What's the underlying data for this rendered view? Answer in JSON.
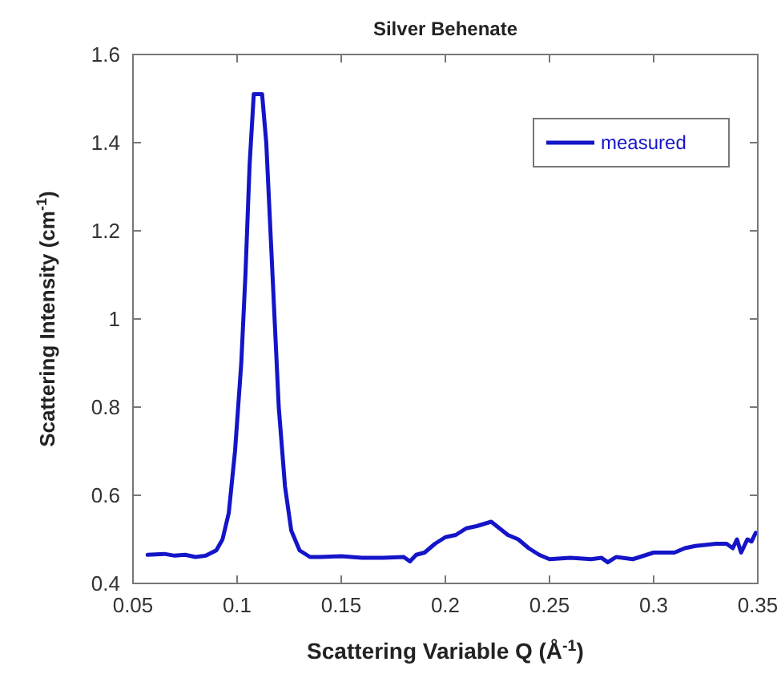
{
  "chart_data": {
    "type": "line",
    "title": "Silver Behenate",
    "xlabel": "Scattering Variable Q (Å$^{-1}$)",
    "ylabel": "Scattering Intensity (cm$^{-1}$)",
    "xlim": [
      0.05,
      0.35
    ],
    "xticks": [
      0.05,
      0.1,
      0.15,
      0.2,
      0.25,
      0.3,
      0.35
    ],
    "ylim": [
      0.4,
      1.6
    ],
    "yticks": [
      0.4,
      0.6,
      0.8,
      1,
      1.2,
      1.4,
      1.6
    ],
    "grid": false,
    "legend": "top right",
    "line_style": "solid",
    "series": [
      {
        "name": "measured",
        "color": "#1414c8",
        "x": [
          0.057,
          0.065,
          0.07,
          0.075,
          0.08,
          0.085,
          0.09,
          0.093,
          0.096,
          0.099,
          0.102,
          0.104,
          0.106,
          0.108,
          0.112,
          0.114,
          0.116,
          0.118,
          0.12,
          0.123,
          0.126,
          0.13,
          0.135,
          0.14,
          0.15,
          0.16,
          0.17,
          0.18,
          0.183,
          0.186,
          0.19,
          0.195,
          0.2,
          0.205,
          0.21,
          0.215,
          0.222,
          0.226,
          0.23,
          0.235,
          0.24,
          0.245,
          0.25,
          0.26,
          0.27,
          0.275,
          0.278,
          0.282,
          0.29,
          0.3,
          0.31,
          0.315,
          0.32,
          0.33,
          0.335,
          0.338,
          0.34,
          0.342,
          0.345,
          0.347,
          0.349
        ],
        "values": [
          0.465,
          0.467,
          0.463,
          0.465,
          0.46,
          0.463,
          0.475,
          0.5,
          0.56,
          0.7,
          0.9,
          1.1,
          1.35,
          1.51,
          1.51,
          1.4,
          1.2,
          1.0,
          0.8,
          0.62,
          0.52,
          0.475,
          0.46,
          0.46,
          0.462,
          0.458,
          0.458,
          0.46,
          0.45,
          0.465,
          0.47,
          0.49,
          0.505,
          0.51,
          0.525,
          0.53,
          0.54,
          0.525,
          0.51,
          0.5,
          0.48,
          0.465,
          0.455,
          0.458,
          0.455,
          0.458,
          0.448,
          0.46,
          0.455,
          0.47,
          0.47,
          0.48,
          0.485,
          0.49,
          0.49,
          0.48,
          0.5,
          0.47,
          0.5,
          0.495,
          0.515
        ]
      }
    ]
  }
}
